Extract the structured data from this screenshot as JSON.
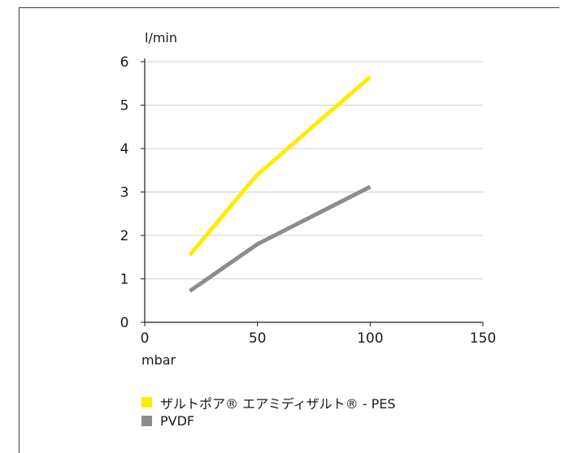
{
  "chart_data": {
    "type": "line",
    "xlabel": "mbar",
    "ylabel": "l/min",
    "xlim": [
      0,
      150
    ],
    "ylim": [
      0,
      6
    ],
    "x_ticks": [
      0,
      50,
      100,
      150
    ],
    "y_ticks": [
      0,
      1,
      2,
      3,
      4,
      5,
      6
    ],
    "grid": "horizontal",
    "legend_position": "bottom",
    "series": [
      {
        "name": "ザルトポア® エアミディザルト® - PES",
        "color": "#FFEB00",
        "points": [
          [
            20,
            1.55
          ],
          [
            45,
            3.1
          ],
          [
            50,
            3.4
          ],
          [
            100,
            5.65
          ]
        ]
      },
      {
        "name": "PVDF",
        "color": "#8C8C8C",
        "points": [
          [
            20,
            0.72
          ],
          [
            50,
            1.8
          ],
          [
            100,
            3.12
          ]
        ]
      }
    ]
  }
}
